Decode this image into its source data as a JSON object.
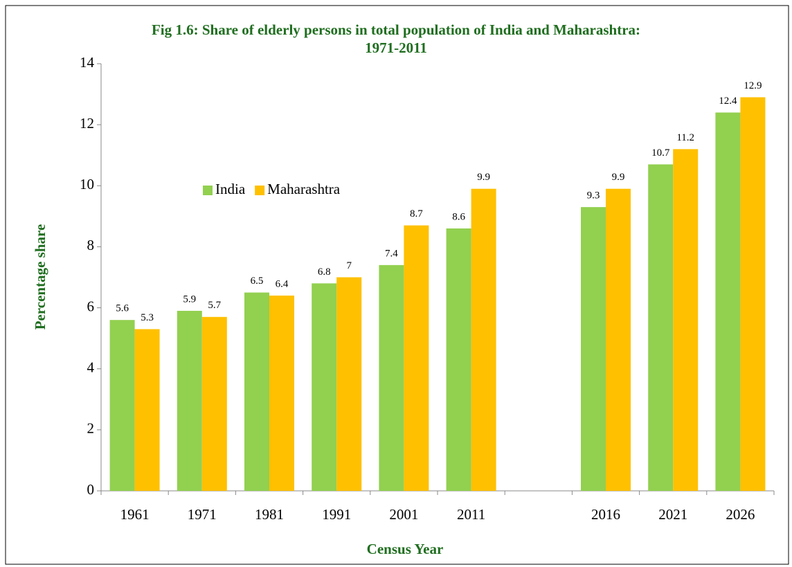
{
  "chart_data": {
    "type": "bar",
    "title": "Fig 1.6: Share of elderly persons in total population of India and Maharashtra: 1971-2011",
    "x_label": "Census Year",
    "y_label": "Percentage share",
    "categories": [
      "1961",
      "1971",
      "1981",
      "1991",
      "2001",
      "2011",
      null,
      "2016",
      "2021",
      "2026"
    ],
    "series": [
      {
        "name": "India",
        "color": "#92d050",
        "values": [
          5.6,
          5.9,
          6.5,
          6.8,
          7.4,
          8.6,
          null,
          9.3,
          10.7,
          12.4
        ]
      },
      {
        "name": "Maharashtra",
        "color": "#ffc000",
        "values": [
          5.3,
          5.7,
          6.4,
          7,
          8.7,
          9.9,
          null,
          9.9,
          11.2,
          12.9
        ]
      }
    ],
    "ylim": [
      0,
      14
    ],
    "yticks": [
      0,
      2,
      4,
      6,
      8,
      10,
      12,
      14
    ],
    "grid": false,
    "legend": "upper left"
  }
}
